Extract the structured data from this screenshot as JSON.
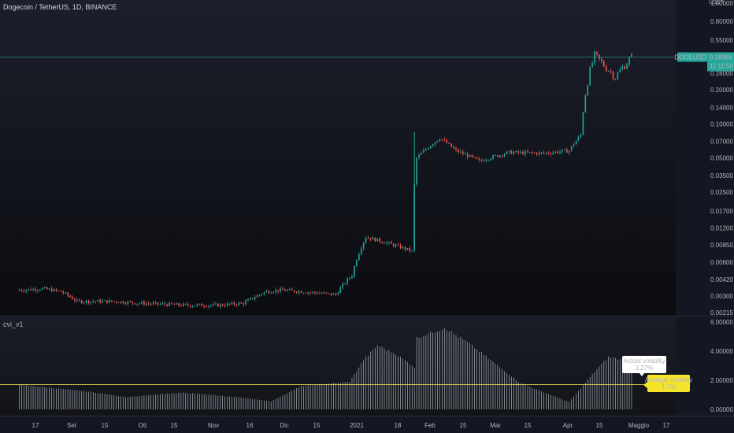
{
  "header": {
    "title": "Dogecoin / TetherUS, 1D, BINANCE",
    "currency": "USDT",
    "indicator": "cvi_v1"
  },
  "price_label": {
    "symbol": "DOGEUSDT",
    "price": "0.38984",
    "time": "11:11:50"
  },
  "annotations": {
    "actual": {
      "title": "Actual volatility",
      "value": "3.27%"
    },
    "average": {
      "title": "Average volatility",
      "value": "1.7%"
    }
  },
  "colors": {
    "background": "#131722",
    "up": "#26a69a",
    "down": "#ef5350",
    "histogram": "#c9ccd4",
    "average_line": "#e3d94c",
    "price_line": "#26a69a",
    "label_bg": "#26a69a",
    "actual_box": "#ffffff",
    "average_box": "#f5e52a"
  },
  "chart_data": [
    {
      "type": "candlestick",
      "title": "Dogecoin / TetherUS, 1D, BINANCE",
      "scale": "log",
      "y_ticks": [
        "1.00000",
        "0.80000",
        "0.55000",
        "0.38984",
        "0.28000",
        "0.20000",
        "0.14000",
        "0.10000",
        "0.07000",
        "0.05000",
        "0.03500",
        "0.02500",
        "0.01700",
        "0.01200",
        "0.00850",
        "0.00600",
        "0.00420",
        "0.00300",
        "0.00215"
      ],
      "x_ticks": [
        "17",
        "Set",
        "15",
        "Ott",
        "15",
        "Nov",
        "16",
        "Dic",
        "15",
        "2021",
        "18",
        "Feb",
        "15",
        "Mar",
        "15",
        "Apr",
        "15",
        "Maggio",
        "17"
      ],
      "last_price": 0.38984,
      "close_path": [
        [
          "2020-08-10",
          0.0034
        ],
        [
          "2020-08-20",
          0.0035
        ],
        [
          "2020-08-28",
          0.0033
        ],
        [
          "2020-09-04",
          0.0027
        ],
        [
          "2020-09-20",
          0.0027
        ],
        [
          "2020-10-01",
          0.0026
        ],
        [
          "2020-10-20",
          0.0025
        ],
        [
          "2020-11-05",
          0.0025
        ],
        [
          "2020-11-15",
          0.0026
        ],
        [
          "2020-11-25",
          0.0033
        ],
        [
          "2020-12-01",
          0.0034
        ],
        [
          "2020-12-10",
          0.0033
        ],
        [
          "2020-12-25",
          0.0031
        ],
        [
          "2021-01-01",
          0.0046
        ],
        [
          "2021-01-07",
          0.01
        ],
        [
          "2021-01-15",
          0.009
        ],
        [
          "2021-01-27",
          0.0075
        ],
        [
          "2021-01-29",
          0.05
        ],
        [
          "2021-02-08",
          0.075
        ],
        [
          "2021-02-15",
          0.058
        ],
        [
          "2021-02-25",
          0.047
        ],
        [
          "2021-03-10",
          0.056
        ],
        [
          "2021-03-25",
          0.055
        ],
        [
          "2021-04-05",
          0.058
        ],
        [
          "2021-04-10",
          0.08
        ],
        [
          "2021-04-16",
          0.4
        ],
        [
          "2021-04-20",
          0.33
        ],
        [
          "2021-04-25",
          0.26
        ],
        [
          "2021-05-02",
          0.3898
        ]
      ]
    },
    {
      "type": "bar",
      "title": "cvi_v1",
      "y_ticks": [
        "6.00000",
        "4.00000",
        "2.00000",
        "0.00000"
      ],
      "ylim": [
        0,
        6
      ],
      "average_volatility": 1.7,
      "actual_volatility": 3.27,
      "envelope": [
        [
          "2020-08-10",
          1.7
        ],
        [
          "2020-09-10",
          1.2
        ],
        [
          "2020-09-25",
          0.85
        ],
        [
          "2020-10-20",
          1.15
        ],
        [
          "2020-11-15",
          0.8
        ],
        [
          "2020-11-27",
          0.55
        ],
        [
          "2020-12-10",
          1.6
        ],
        [
          "2020-12-31",
          1.9
        ],
        [
          "2021-01-06",
          3.4
        ],
        [
          "2021-01-12",
          4.4
        ],
        [
          "2021-01-20",
          3.8
        ],
        [
          "2021-01-28",
          2.9
        ],
        [
          "2021-01-29",
          4.9
        ],
        [
          "2021-02-10",
          5.6
        ],
        [
          "2021-02-20",
          4.6
        ],
        [
          "2021-03-15",
          1.8
        ],
        [
          "2021-04-05",
          0.5
        ],
        [
          "2021-04-16",
          2.6
        ],
        [
          "2021-04-22",
          3.6
        ],
        [
          "2021-05-02",
          3.27
        ]
      ]
    }
  ]
}
